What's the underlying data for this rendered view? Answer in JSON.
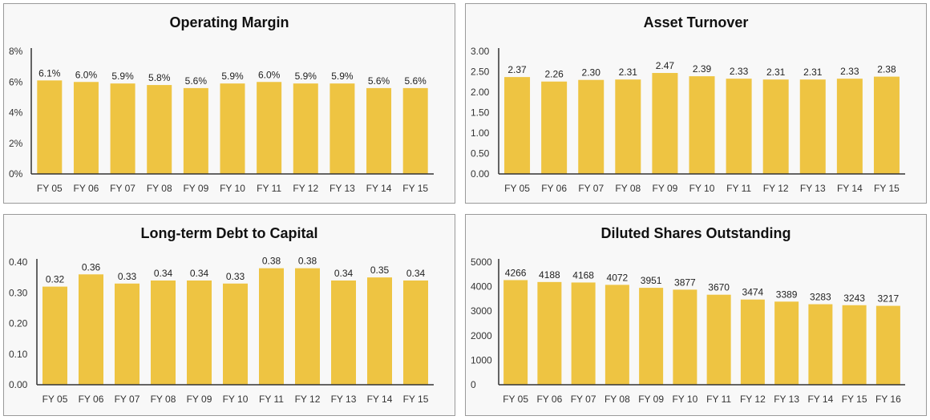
{
  "colors": {
    "bar": "#eec442",
    "axis": "#333333",
    "panel_bg": "#f8f8f8"
  },
  "chart_data": [
    {
      "type": "bar",
      "title": "Operating Margin",
      "categories": [
        "FY 05",
        "FY 06",
        "FY 07",
        "FY 08",
        "FY 09",
        "FY 10",
        "FY 11",
        "FY 12",
        "FY 13",
        "FY 14",
        "FY 15"
      ],
      "values": [
        6.1,
        6.0,
        5.9,
        5.8,
        5.6,
        5.9,
        6.0,
        5.9,
        5.9,
        5.6,
        5.6
      ],
      "value_labels": [
        "6.1%",
        "6.0%",
        "5.9%",
        "5.8%",
        "5.6%",
        "5.9%",
        "6.0%",
        "5.9%",
        "5.9%",
        "5.6%",
        "5.6%"
      ],
      "ylim": [
        0,
        8
      ],
      "yticks": [
        0,
        2,
        4,
        6,
        8
      ],
      "ytick_labels": [
        "0%",
        "2%",
        "4%",
        "6%",
        "8%"
      ],
      "grid": false
    },
    {
      "type": "bar",
      "title": "Asset Turnover",
      "categories": [
        "FY 05",
        "FY 06",
        "FY 07",
        "FY 08",
        "FY 09",
        "FY 10",
        "FY 11",
        "FY 12",
        "FY 13",
        "FY 14",
        "FY 15"
      ],
      "values": [
        2.37,
        2.26,
        2.3,
        2.31,
        2.47,
        2.39,
        2.33,
        2.31,
        2.31,
        2.33,
        2.38
      ],
      "value_labels": [
        "2.37",
        "2.26",
        "2.30",
        "2.31",
        "2.47",
        "2.39",
        "2.33",
        "2.31",
        "2.31",
        "2.33",
        "2.38"
      ],
      "ylim": [
        0,
        3
      ],
      "yticks": [
        0,
        0.5,
        1,
        1.5,
        2,
        2.5,
        3
      ],
      "ytick_labels": [
        "0.00",
        "0.50",
        "1.00",
        "1.50",
        "2.00",
        "2.50",
        "3.00"
      ],
      "grid": false
    },
    {
      "type": "bar",
      "title": "Long-term Debt to Capital",
      "categories": [
        "FY 05",
        "FY 06",
        "FY 07",
        "FY 08",
        "FY 09",
        "FY 10",
        "FY 11",
        "FY 12",
        "FY 13",
        "FY 14",
        "FY 15"
      ],
      "values": [
        0.32,
        0.36,
        0.33,
        0.34,
        0.34,
        0.33,
        0.38,
        0.38,
        0.34,
        0.35,
        0.34
      ],
      "value_labels": [
        "0.32",
        "0.36",
        "0.33",
        "0.34",
        "0.34",
        "0.33",
        "0.38",
        "0.38",
        "0.34",
        "0.35",
        "0.34"
      ],
      "ylim": [
        0,
        0.4
      ],
      "yticks": [
        0,
        0.1,
        0.2,
        0.3,
        0.4
      ],
      "ytick_labels": [
        "0.00",
        "0.10",
        "0.20",
        "0.30",
        "0.40"
      ],
      "grid": false
    },
    {
      "type": "bar",
      "title": "Diluted Shares Outstanding",
      "categories": [
        "FY 05",
        "FY 06",
        "FY 07",
        "FY 08",
        "FY 09",
        "FY 10",
        "FY 11",
        "FY 12",
        "FY 13",
        "FY 14",
        "FY 15",
        "FY 16"
      ],
      "values": [
        4266,
        4188,
        4168,
        4072,
        3951,
        3877,
        3670,
        3474,
        3389,
        3283,
        3243,
        3217
      ],
      "value_labels": [
        "4266",
        "4188",
        "4168",
        "4072",
        "3951",
        "3877",
        "3670",
        "3474",
        "3389",
        "3283",
        "3243",
        "3217"
      ],
      "ylim": [
        0,
        5000
      ],
      "yticks": [
        0,
        1000,
        2000,
        3000,
        4000,
        5000
      ],
      "ytick_labels": [
        "0",
        "1000",
        "2000",
        "3000",
        "4000",
        "5000"
      ],
      "grid": false
    }
  ]
}
